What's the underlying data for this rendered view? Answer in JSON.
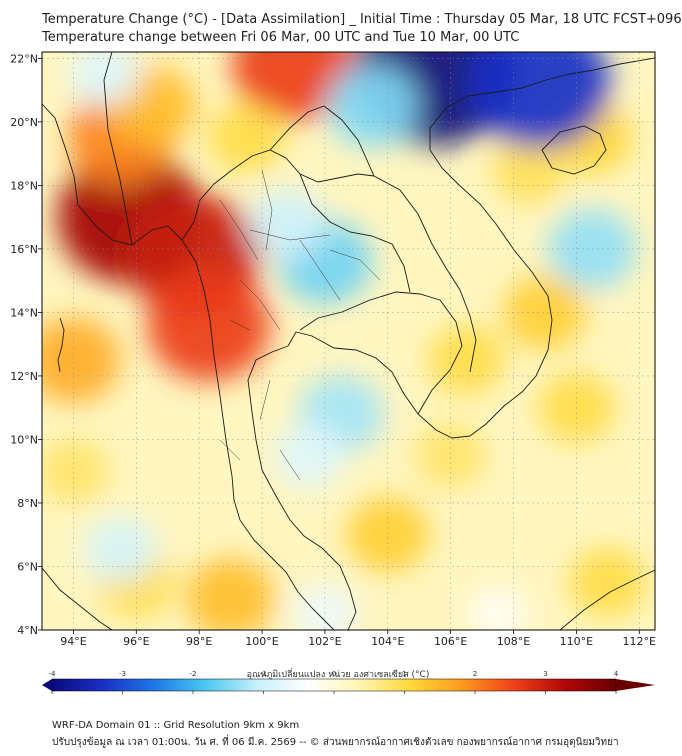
{
  "title": {
    "line1": "Temperature Change (°C) - [Data Assimilation] _ Initial Time : Thursday 05 Mar, 18 UTC FCST+096",
    "line2": "Temperature change between Fri 06 Mar, 00 UTC and Tue 10 Mar, 00 UTC"
  },
  "map": {
    "lon_range": [
      93,
      112.5
    ],
    "lat_range": [
      4,
      22.2
    ],
    "lon_ticks": [
      94,
      96,
      98,
      100,
      102,
      104,
      106,
      108,
      110,
      112
    ],
    "lon_labels": [
      "94°E",
      "96°E",
      "98°E",
      "100°E",
      "102°E",
      "104°E",
      "106°E",
      "108°E",
      "110°E",
      "112°E"
    ],
    "lat_ticks": [
      4,
      6,
      8,
      10,
      12,
      14,
      16,
      18,
      20,
      22
    ],
    "lat_labels": [
      "4°N",
      "6°N",
      "8°N",
      "10°N",
      "12°N",
      "14°N",
      "16°N",
      "18°N",
      "20°N",
      "22°N"
    ],
    "field": [
      {
        "lon": 95.8,
        "lat": 17.0,
        "value": 3.4
      },
      {
        "lon": 97.8,
        "lat": 15.8,
        "value": 3.0
      },
      {
        "lon": 98.3,
        "lat": 13.6,
        "value": 2.6
      },
      {
        "lon": 101.0,
        "lat": 21.8,
        "value": 2.6
      },
      {
        "lon": 94.0,
        "lat": 12.5,
        "value": 1.6
      },
      {
        "lon": 95.5,
        "lat": 19.5,
        "value": 2.0
      },
      {
        "lon": 96.5,
        "lat": 20.5,
        "value": 1.4
      },
      {
        "lon": 99.5,
        "lat": 19.5,
        "value": 1.0
      },
      {
        "lon": 108.5,
        "lat": 18.5,
        "value": 0.9
      },
      {
        "lon": 110.5,
        "lat": 19.5,
        "value": 1.1
      },
      {
        "lon": 106.5,
        "lat": 12.5,
        "value": 1.0
      },
      {
        "lon": 109.0,
        "lat": 14.0,
        "value": 1.2
      },
      {
        "lon": 110.0,
        "lat": 11.0,
        "value": 1.0
      },
      {
        "lon": 104.0,
        "lat": 7.0,
        "value": 1.2
      },
      {
        "lon": 99.0,
        "lat": 5.0,
        "value": 1.4
      },
      {
        "lon": 96.0,
        "lat": 5.5,
        "value": 1.0
      },
      {
        "lon": 111.0,
        "lat": 5.5,
        "value": 1.0
      },
      {
        "lon": 94.0,
        "lat": 9.0,
        "value": 0.8
      },
      {
        "lon": 106.0,
        "lat": 9.5,
        "value": 0.8
      },
      {
        "lon": 105.5,
        "lat": 21.6,
        "value": -4.0
      },
      {
        "lon": 108.8,
        "lat": 21.2,
        "value": -3.3
      },
      {
        "lon": 103.5,
        "lat": 20.5,
        "value": -1.5
      },
      {
        "lon": 102.0,
        "lat": 15.6,
        "value": -1.6
      },
      {
        "lon": 100.8,
        "lat": 16.8,
        "value": -1.0
      },
      {
        "lon": 102.5,
        "lat": 10.8,
        "value": -1.3
      },
      {
        "lon": 101.5,
        "lat": 9.5,
        "value": -0.8
      },
      {
        "lon": 110.5,
        "lat": 16.0,
        "value": -1.4
      },
      {
        "lon": 95.0,
        "lat": 21.5,
        "value": -0.8
      },
      {
        "lon": 95.5,
        "lat": 6.5,
        "value": -0.9
      },
      {
        "lon": 102.0,
        "lat": 4.5,
        "value": -0.6
      },
      {
        "lon": 107.5,
        "lat": 4.5,
        "value": -0.3
      }
    ]
  },
  "colorbar": {
    "label": "อุณหภูมิเปลี่ยนแปลง หน่วย องศาเซลเซียส (°C)",
    "min": -4,
    "max": 4,
    "ticks": [
      "-4",
      "-3",
      "-2",
      "-1",
      "0",
      "1",
      "2",
      "3",
      "4"
    ],
    "colors": [
      "#0a0a7a",
      "#1a30c8",
      "#1e78e6",
      "#4cc8f0",
      "#c8f0fa",
      "#ffffff",
      "#fff5b0",
      "#ffd838",
      "#ff9a1e",
      "#f04018",
      "#b00808",
      "#680000"
    ]
  },
  "footer": {
    "line1": "WRF-DA Domain 01 :: Grid Resolution 9km x 9km",
    "line2": "ปรับปรุงข้อมูล ณ เวลา 01:00น. วัน ศ. ที่ 06 มี.ค. 2569 -- © ส่วนพยากรณ์อากาศเชิงตัวเลข กองพยากรณ์อากาศ กรมอุตุนิยมวิทยา"
  }
}
